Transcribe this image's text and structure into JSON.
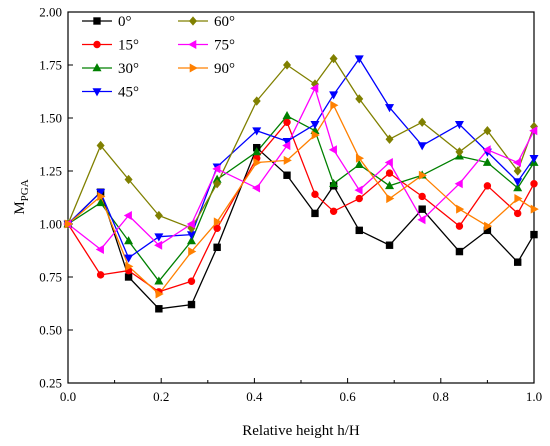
{
  "chart_data": {
    "type": "line",
    "xlabel": "Relative height  h/H",
    "ylabel_main": "M",
    "ylabel_sub": "PGA",
    "xlim": [
      0.0,
      1.0
    ],
    "ylim": [
      0.25,
      2.0
    ],
    "xticks": [
      "0.0",
      "0.2",
      "0.4",
      "0.6",
      "0.8",
      "1.0"
    ],
    "yticks": [
      "0.25",
      "0.50",
      "0.75",
      "1.00",
      "1.25",
      "1.50",
      "1.75",
      "2.00"
    ],
    "grid": false,
    "legend_position": "top-left",
    "series": [
      {
        "name": "0°",
        "color": "#000000",
        "marker": "square",
        "x": [
          0.0,
          0.07,
          0.13,
          0.195,
          0.265,
          0.32,
          0.405,
          0.47,
          0.53,
          0.57,
          0.625,
          0.69,
          0.76,
          0.84,
          0.9,
          0.965,
          1.0
        ],
        "y": [
          1.0,
          1.15,
          0.75,
          0.6,
          0.62,
          0.89,
          1.36,
          1.23,
          1.05,
          1.18,
          0.97,
          0.9,
          1.07,
          0.87,
          0.97,
          0.82,
          0.95
        ]
      },
      {
        "name": "15°",
        "color": "#ff0000",
        "marker": "circle",
        "x": [
          0.0,
          0.07,
          0.13,
          0.195,
          0.265,
          0.32,
          0.405,
          0.47,
          0.53,
          0.57,
          0.625,
          0.69,
          0.76,
          0.84,
          0.9,
          0.965,
          1.0
        ],
        "y": [
          1.0,
          0.76,
          0.78,
          0.68,
          0.73,
          0.98,
          1.31,
          1.48,
          1.14,
          1.06,
          1.12,
          1.24,
          1.13,
          0.99,
          1.18,
          1.05,
          1.19
        ]
      },
      {
        "name": "30°",
        "color": "#008000",
        "marker": "triangle-up",
        "x": [
          0.0,
          0.07,
          0.13,
          0.195,
          0.265,
          0.32,
          0.405,
          0.47,
          0.53,
          0.57,
          0.625,
          0.69,
          0.76,
          0.84,
          0.9,
          0.965,
          1.0
        ],
        "y": [
          1.0,
          1.1,
          0.92,
          0.73,
          0.92,
          1.21,
          1.34,
          1.51,
          1.44,
          1.19,
          1.28,
          1.18,
          1.23,
          1.32,
          1.29,
          1.17,
          1.29
        ]
      },
      {
        "name": "45°",
        "color": "#0000ff",
        "marker": "triangle-down",
        "x": [
          0.0,
          0.07,
          0.13,
          0.195,
          0.265,
          0.32,
          0.405,
          0.47,
          0.53,
          0.57,
          0.625,
          0.69,
          0.76,
          0.84,
          0.9,
          0.965,
          1.0
        ],
        "y": [
          1.0,
          1.15,
          0.84,
          0.94,
          0.95,
          1.27,
          1.44,
          1.39,
          1.47,
          1.61,
          1.78,
          1.55,
          1.37,
          1.47,
          1.34,
          1.2,
          1.31
        ]
      },
      {
        "name": "60°",
        "color": "#808000",
        "marker": "diamond",
        "x": [
          0.0,
          0.07,
          0.13,
          0.195,
          0.265,
          0.32,
          0.405,
          0.47,
          0.53,
          0.57,
          0.625,
          0.69,
          0.76,
          0.84,
          0.9,
          0.965,
          1.0
        ],
        "y": [
          1.0,
          1.37,
          1.21,
          1.04,
          0.98,
          1.19,
          1.58,
          1.75,
          1.66,
          1.78,
          1.59,
          1.4,
          1.48,
          1.34,
          1.44,
          1.25,
          1.46
        ]
      },
      {
        "name": "75°",
        "color": "#ff00ff",
        "marker": "triangle-left",
        "x": [
          0.0,
          0.07,
          0.13,
          0.195,
          0.265,
          0.32,
          0.405,
          0.47,
          0.53,
          0.57,
          0.625,
          0.69,
          0.76,
          0.84,
          0.9,
          0.965,
          1.0
        ],
        "y": [
          1.0,
          0.88,
          1.04,
          0.9,
          1.0,
          1.26,
          1.17,
          1.37,
          1.64,
          1.35,
          1.16,
          1.29,
          1.02,
          1.19,
          1.35,
          1.29,
          1.44
        ]
      },
      {
        "name": "90°",
        "color": "#ff8000",
        "marker": "triangle-right",
        "x": [
          0.0,
          0.07,
          0.13,
          0.195,
          0.265,
          0.32,
          0.405,
          0.47,
          0.53,
          0.57,
          0.625,
          0.69,
          0.76,
          0.84,
          0.9,
          0.965,
          1.0
        ],
        "y": [
          1.0,
          1.13,
          0.8,
          0.67,
          0.87,
          1.01,
          1.29,
          1.3,
          1.42,
          1.56,
          1.31,
          1.12,
          1.23,
          1.07,
          0.99,
          1.12,
          1.07
        ]
      }
    ]
  }
}
